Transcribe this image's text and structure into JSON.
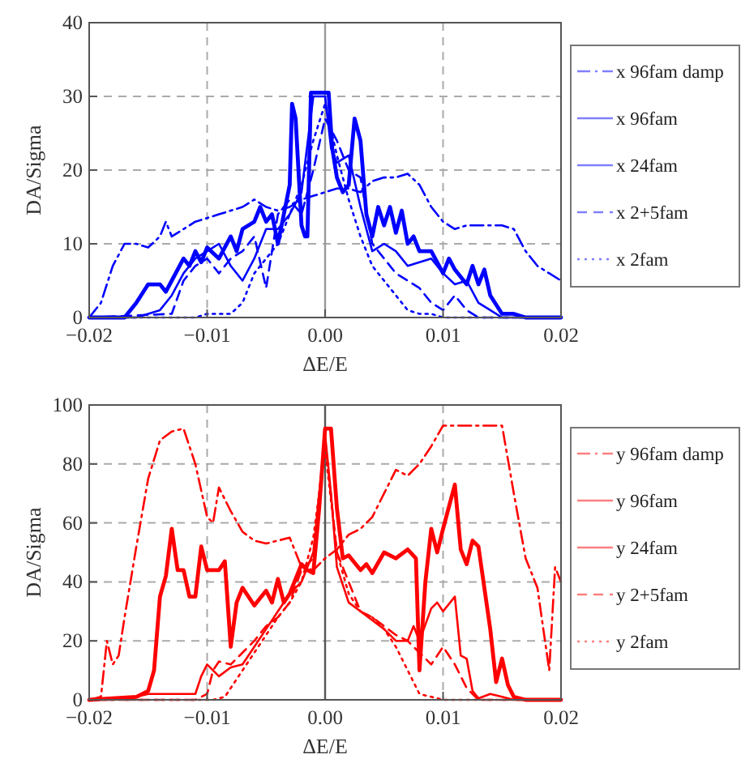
{
  "chart_data": [
    {
      "type": "line",
      "xlabel": "ΔE/E",
      "ylabel": "DA/Sigma",
      "xlim": [
        -0.02,
        0.02
      ],
      "ylim": [
        0,
        40
      ],
      "xticks": [
        {
          "value": -0.02,
          "label": "−0.02"
        },
        {
          "value": -0.01,
          "label": "−0.01"
        },
        {
          "value": 0,
          "label": "0.00"
        },
        {
          "value": 0.01,
          "label": "0.01"
        },
        {
          "value": 0.02,
          "label": "0.02"
        }
      ],
      "yticks": [
        0,
        10,
        20,
        30,
        40
      ],
      "grid": true,
      "legend": "right",
      "ref_lines": [
        {
          "axis": "x",
          "value": 0,
          "color": "#999999"
        }
      ],
      "series": [
        {
          "name": "x 96fam damp",
          "color": "#0000ff",
          "line_style": "dashdot",
          "x": [
            -0.02,
            -0.019,
            -0.018,
            -0.017,
            -0.016,
            -0.015,
            -0.014,
            -0.0135,
            -0.013,
            -0.012,
            -0.011,
            -0.01,
            -0.009,
            -0.008,
            -0.007,
            -0.006,
            -0.005,
            -0.004,
            -0.003,
            -0.002,
            -0.001,
            0,
            0.001,
            0.002,
            0.003,
            0.004,
            0.005,
            0.006,
            0.007,
            0.008,
            0.009,
            0.01,
            0.011,
            0.012,
            0.013,
            0.014,
            0.015,
            0.016,
            0.017,
            0.018,
            0.019,
            0.02
          ],
          "values": [
            0,
            2,
            7,
            10,
            10,
            9.5,
            11,
            13,
            11,
            12,
            13,
            13.5,
            14,
            14.5,
            15,
            16,
            15,
            14.5,
            15,
            16,
            16.5,
            17,
            17.5,
            17.5,
            17,
            18.5,
            19,
            19,
            19.5,
            18,
            15,
            13,
            12,
            12.5,
            12.5,
            12.5,
            12.5,
            12,
            9,
            7,
            6,
            5
          ]
        },
        {
          "name": "x 96fam",
          "color": "#0000ff",
          "line_style": "solid",
          "x": [
            -0.02,
            -0.017,
            -0.016,
            -0.015,
            -0.014,
            -0.0135,
            -0.013,
            -0.012,
            -0.0115,
            -0.011,
            -0.0105,
            -0.01,
            -0.009,
            -0.008,
            -0.0075,
            -0.007,
            -0.006,
            -0.0055,
            -0.005,
            -0.0045,
            -0.004,
            -0.0035,
            -0.003,
            -0.0028,
            -0.0025,
            -0.002,
            -0.0017,
            -0.0015,
            -0.0012,
            0.0003,
            0.0006,
            0.001,
            0.0015,
            0.002,
            0.0025,
            0.003,
            0.0035,
            0.004,
            0.0045,
            0.005,
            0.0055,
            0.006,
            0.0065,
            0.007,
            0.0075,
            0.008,
            0.009,
            0.01,
            0.0105,
            0.011,
            0.012,
            0.0125,
            0.013,
            0.0135,
            0.014,
            0.015,
            0.016,
            0.017,
            0.02
          ],
          "values": [
            0,
            0,
            2,
            4.5,
            4.5,
            3.5,
            5,
            8,
            7,
            9,
            7.5,
            9.5,
            8,
            11,
            9,
            12,
            13,
            15,
            13,
            14,
            10,
            14,
            18,
            29,
            27,
            12.5,
            11,
            11,
            30.5,
            30.5,
            23,
            19,
            17,
            18,
            27,
            24,
            14,
            11,
            15,
            12.5,
            15,
            11.5,
            14.5,
            10,
            11,
            9,
            9,
            6,
            8,
            6.5,
            4.5,
            7,
            4.5,
            6.5,
            3,
            0.5,
            0.5,
            0,
            0
          ]
        },
        {
          "name": "x 24fam",
          "color": "#0000ff",
          "line_style": "solid",
          "x": [
            -0.02,
            -0.016,
            -0.015,
            -0.014,
            -0.013,
            -0.012,
            -0.011,
            -0.01,
            -0.009,
            -0.008,
            -0.007,
            -0.006,
            -0.005,
            -0.004,
            -0.003,
            -0.002,
            -0.001,
            0,
            0.0005,
            0.001,
            0.002,
            0.003,
            0.004,
            0.005,
            0.006,
            0.007,
            0.008,
            0.009,
            0.01,
            0.011,
            0.012,
            0.013,
            0.014,
            0.015,
            0.02
          ],
          "values": [
            0,
            0,
            0.5,
            1,
            3,
            6,
            8,
            9,
            10,
            7,
            5,
            8,
            12,
            12,
            14,
            17,
            30,
            30,
            23,
            21,
            22,
            15,
            9,
            10,
            9,
            7,
            7.5,
            8,
            6,
            4.5,
            5,
            2,
            1,
            0,
            0
          ]
        },
        {
          "name": "x 2+5fam",
          "color": "#0000ff",
          "line_style": "dashed",
          "x": [
            -0.02,
            -0.013,
            -0.012,
            -0.011,
            -0.01,
            -0.009,
            -0.008,
            -0.007,
            -0.006,
            -0.005,
            -0.004,
            -0.003,
            -0.002,
            -0.001,
            0,
            0.001,
            0.002,
            0.003,
            0.004,
            0.005,
            0.006,
            0.007,
            0.008,
            0.009,
            0.01,
            0.011,
            0.012,
            0.013,
            0.02
          ],
          "values": [
            0,
            0.5,
            5,
            7,
            8,
            6,
            8,
            9,
            11,
            4,
            14,
            16,
            14,
            20,
            27,
            24,
            20,
            19,
            10,
            8,
            6,
            5,
            4,
            2,
            1,
            3,
            1,
            0,
            0
          ]
        },
        {
          "name": "x 2fam",
          "color": "#0000ff",
          "line_style": "dotted",
          "x": [
            -0.02,
            -0.011,
            -0.01,
            -0.008,
            -0.007,
            -0.006,
            -0.005,
            -0.004,
            -0.003,
            -0.002,
            -0.001,
            0,
            0.001,
            0.002,
            0.003,
            0.004,
            0.005,
            0.006,
            0.007,
            0.008,
            0.009,
            0.01,
            0.02
          ],
          "values": [
            0,
            0,
            0.5,
            0.5,
            2,
            6,
            8,
            10,
            14,
            18,
            24,
            29,
            22,
            16,
            11,
            7,
            5,
            3,
            1,
            0.5,
            0.5,
            0,
            0
          ]
        }
      ]
    },
    {
      "type": "line",
      "xlabel": "ΔE/E",
      "ylabel": "DA/Sigma",
      "xlim": [
        -0.02,
        0.02
      ],
      "ylim": [
        0,
        100
      ],
      "xticks": [
        {
          "value": -0.02,
          "label": "−0.02"
        },
        {
          "value": -0.01,
          "label": "−0.01"
        },
        {
          "value": 0,
          "label": "0.00"
        },
        {
          "value": 0.01,
          "label": "0.01"
        },
        {
          "value": 0.02,
          "label": "0.02"
        }
      ],
      "yticks": [
        0,
        20,
        40,
        60,
        80,
        100
      ],
      "grid": true,
      "legend": "right",
      "ref_lines": [
        {
          "axis": "x",
          "value": 0,
          "color": "#555555"
        }
      ],
      "series": [
        {
          "name": "y 96fam damp",
          "color": "#ff0000",
          "line_style": "dashdot",
          "x": [
            -0.02,
            -0.019,
            -0.0185,
            -0.018,
            -0.0175,
            -0.017,
            -0.016,
            -0.015,
            -0.014,
            -0.013,
            -0.012,
            -0.011,
            -0.01,
            -0.0095,
            -0.009,
            -0.008,
            -0.007,
            -0.006,
            -0.005,
            -0.004,
            -0.003,
            -0.002,
            -0.001,
            0,
            0.001,
            0.002,
            0.003,
            0.004,
            0.005,
            0.006,
            0.007,
            0.008,
            0.009,
            0.01,
            0.015,
            0.016,
            0.017,
            0.018,
            0.019,
            0.0195,
            0.02
          ],
          "values": [
            0,
            1,
            20,
            12,
            15,
            28,
            52,
            75,
            88,
            91,
            92,
            80,
            62,
            60,
            72,
            64,
            57,
            54,
            53,
            54,
            55,
            45,
            44,
            48,
            51,
            56,
            58,
            62,
            70,
            78,
            76,
            80,
            86,
            93,
            93,
            70,
            48,
            38,
            10,
            45,
            40
          ]
        },
        {
          "name": "y 96fam",
          "color": "#ff0000",
          "line_style": "solid",
          "x": [
            -0.02,
            -0.016,
            -0.015,
            -0.0145,
            -0.014,
            -0.0135,
            -0.013,
            -0.0125,
            -0.012,
            -0.0115,
            -0.011,
            -0.0105,
            -0.01,
            -0.009,
            -0.0085,
            -0.008,
            -0.0075,
            -0.007,
            -0.006,
            -0.005,
            -0.0045,
            -0.004,
            -0.0035,
            -0.003,
            -0.002,
            -0.0015,
            -0.001,
            -0.0005,
            0,
            0.0005,
            0.001,
            0.0015,
            0.002,
            0.003,
            0.0035,
            0.004,
            0.005,
            0.006,
            0.007,
            0.0077,
            0.008,
            0.0085,
            0.009,
            0.0095,
            0.01,
            0.011,
            0.0115,
            0.012,
            0.0125,
            0.013,
            0.014,
            0.0145,
            0.015,
            0.0155,
            0.016,
            0.017,
            0.02
          ],
          "values": [
            0,
            1,
            3,
            10,
            35,
            42,
            58,
            44,
            44,
            35,
            35,
            52,
            44,
            44,
            47,
            18,
            33,
            38,
            32,
            37,
            33,
            41,
            33,
            36,
            46,
            44,
            43,
            65,
            92,
            92,
            65,
            48,
            49,
            44,
            46,
            43,
            50,
            48,
            51,
            48,
            10,
            40,
            58,
            50,
            58,
            73,
            51,
            46,
            54,
            52,
            24,
            6,
            14,
            5,
            1,
            0,
            0
          ]
        },
        {
          "name": "y 24fam",
          "color": "#ff0000",
          "line_style": "solid",
          "x": [
            -0.02,
            -0.016,
            -0.015,
            -0.014,
            -0.012,
            -0.011,
            -0.0105,
            -0.01,
            -0.009,
            -0.008,
            -0.007,
            -0.006,
            -0.005,
            -0.004,
            -0.003,
            -0.002,
            -0.001,
            0,
            0.0005,
            0.001,
            0.002,
            0.003,
            0.004,
            0.005,
            0.006,
            0.007,
            0.0075,
            0.008,
            0.009,
            0.0095,
            0.01,
            0.011,
            0.0115,
            0.012,
            0.0125,
            0.013,
            0.014,
            0.015,
            0.016,
            0.02
          ],
          "values": [
            0,
            1,
            2,
            2,
            2,
            2,
            8,
            12,
            8,
            11,
            12,
            18,
            24,
            30,
            36,
            40,
            50,
            90,
            70,
            45,
            33,
            30,
            27,
            24,
            20,
            20,
            25,
            20,
            31,
            33,
            30,
            35,
            15,
            14,
            3,
            0.5,
            2,
            1,
            0,
            0
          ]
        },
        {
          "name": "y 2+5fam",
          "color": "#ff0000",
          "line_style": "dashed",
          "x": [
            -0.02,
            -0.011,
            -0.01,
            -0.0095,
            -0.009,
            -0.008,
            -0.007,
            -0.006,
            -0.005,
            -0.004,
            -0.003,
            -0.002,
            -0.001,
            0,
            0.001,
            0.002,
            0.003,
            0.004,
            0.005,
            0.006,
            0.007,
            0.008,
            0.009,
            0.01,
            0.011,
            0.012,
            0.013,
            0.02
          ],
          "values": [
            0,
            0,
            2,
            10,
            13,
            12,
            16,
            20,
            25,
            28,
            33,
            44,
            48,
            88,
            50,
            40,
            30,
            28,
            25,
            22,
            20,
            16,
            12,
            18,
            12,
            4,
            0,
            0
          ]
        },
        {
          "name": "y 2fam",
          "color": "#ff0000",
          "line_style": "dotted",
          "x": [
            -0.02,
            -0.0095,
            -0.0085,
            -0.008,
            -0.007,
            -0.006,
            -0.005,
            -0.004,
            -0.003,
            -0.002,
            -0.001,
            0,
            0.001,
            0.002,
            0.003,
            0.004,
            0.005,
            0.006,
            0.007,
            0.008,
            0.009,
            0.01,
            0.02
          ],
          "values": [
            0,
            0,
            1,
            4,
            10,
            16,
            22,
            28,
            33,
            40,
            55,
            85,
            50,
            36,
            30,
            28,
            24,
            18,
            10,
            2,
            1,
            0,
            0
          ]
        }
      ]
    }
  ]
}
